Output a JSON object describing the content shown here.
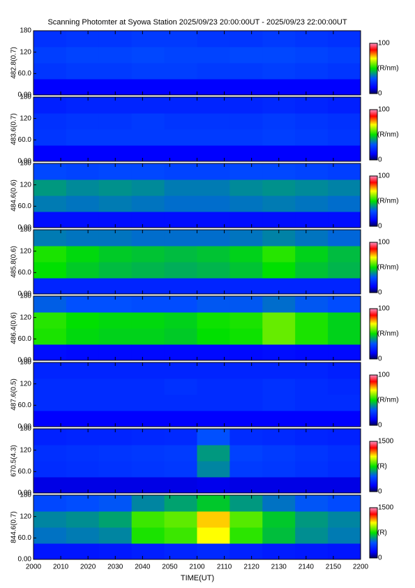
{
  "chart_data": {
    "type": "heatmap",
    "title": "Scanning Photomter at Syowa Station 2025/09/23 20:00:00UT - 2025/09/23 22:00:00UT",
    "x_label": "TIME(UT)",
    "xlim": [
      0,
      120
    ],
    "xticks": [
      {
        "value": 0,
        "label": "2000"
      },
      {
        "value": 10,
        "label": "2010"
      },
      {
        "value": 20,
        "label": "2020"
      },
      {
        "value": 30,
        "label": "2030"
      },
      {
        "value": 40,
        "label": "2040"
      },
      {
        "value": 50,
        "label": "2050"
      },
      {
        "value": 60,
        "label": "2100"
      },
      {
        "value": 70,
        "label": "2110"
      },
      {
        "value": 80,
        "label": "2120"
      },
      {
        "value": 90,
        "label": "2130"
      },
      {
        "value": 100,
        "label": "2140"
      },
      {
        "value": 110,
        "label": "2150"
      },
      {
        "value": 120,
        "label": "2200"
      }
    ],
    "time_bins": [
      0,
      12,
      24,
      36,
      48,
      60,
      72,
      84,
      96,
      108,
      120
    ],
    "elevation_bins": [
      0,
      45,
      90,
      135,
      180
    ],
    "ylim": [
      0,
      180
    ],
    "yticks": [
      {
        "value": 0,
        "label": "0.00"
      },
      {
        "value": 60,
        "label": "60.0"
      },
      120,
      180
    ],
    "panels": [
      {
        "y_label": "482.8(0.7)",
        "unit": "(R/nm)",
        "clim": [
          0,
          100
        ],
        "cticks": [
          0,
          100
        ],
        "values": [
          [
            12,
            12,
            12,
            12,
            12,
            12,
            12,
            12,
            12,
            12
          ],
          [
            24,
            25,
            25,
            26,
            26,
            25,
            25,
            26,
            25,
            24
          ],
          [
            26,
            27,
            27,
            28,
            27,
            27,
            28,
            28,
            27,
            26
          ],
          [
            23,
            24,
            24,
            25,
            25,
            24,
            24,
            25,
            24,
            23
          ]
        ]
      },
      {
        "y_label": "483.6(0.7)",
        "unit": "(R/nm)",
        "clim": [
          0,
          100
        ],
        "cticks": [
          0,
          100
        ],
        "values": [
          [
            12,
            12,
            12,
            12,
            12,
            12,
            12,
            12,
            12,
            12
          ],
          [
            24,
            25,
            25,
            25,
            25,
            25,
            25,
            26,
            25,
            24
          ],
          [
            23,
            24,
            24,
            25,
            24,
            24,
            24,
            25,
            24,
            23
          ],
          [
            19,
            20,
            20,
            20,
            20,
            20,
            20,
            21,
            20,
            19
          ]
        ]
      },
      {
        "y_label": "484.6(0.6)",
        "unit": "(R/nm)",
        "clim": [
          0,
          100
        ],
        "cticks": [
          0,
          100
        ],
        "values": [
          [
            15,
            15,
            15,
            15,
            15,
            15,
            15,
            15,
            15,
            15
          ],
          [
            36,
            35,
            36,
            35,
            34,
            34,
            35,
            36,
            35,
            34
          ],
          [
            40,
            38,
            39,
            38,
            36,
            36,
            38,
            39,
            38,
            37
          ],
          [
            28,
            27,
            28,
            28,
            27,
            27,
            28,
            28,
            27,
            26
          ]
        ]
      },
      {
        "y_label": "485.8(0.6)",
        "unit": "(R/nm)",
        "clim": [
          0,
          100
        ],
        "cticks": [
          0,
          100
        ],
        "values": [
          [
            20,
            20,
            20,
            20,
            20,
            20,
            20,
            20,
            20,
            20
          ],
          [
            50,
            47,
            45,
            44,
            43,
            44,
            46,
            50,
            46,
            44
          ],
          [
            52,
            49,
            47,
            46,
            45,
            46,
            48,
            53,
            48,
            45
          ],
          [
            36,
            35,
            35,
            34,
            34,
            34,
            35,
            37,
            35,
            33
          ]
        ]
      },
      {
        "y_label": "486.4(0.6)",
        "unit": "(R/nm)",
        "clim": [
          0,
          100
        ],
        "cticks": [
          0,
          100
        ],
        "values": [
          [
            15,
            14,
            14,
            14,
            14,
            14,
            14,
            15,
            14,
            14
          ],
          [
            52,
            49,
            48,
            48,
            47,
            50,
            51,
            58,
            52,
            48
          ],
          [
            53,
            50,
            49,
            49,
            48,
            51,
            52,
            58,
            52,
            48
          ],
          [
            32,
            30,
            30,
            29,
            29,
            31,
            31,
            34,
            31,
            29
          ]
        ]
      },
      {
        "y_label": "487.6(0.5)",
        "unit": "(R/nm)",
        "clim": [
          0,
          100
        ],
        "cticks": [
          0,
          100
        ],
        "values": [
          [
            12,
            12,
            12,
            12,
            12,
            12,
            12,
            12,
            12,
            12
          ],
          [
            22,
            22,
            22,
            22,
            22,
            22,
            22,
            23,
            22,
            22
          ],
          [
            22,
            22,
            22,
            22,
            23,
            22,
            22,
            23,
            22,
            21
          ],
          [
            20,
            20,
            20,
            20,
            20,
            20,
            20,
            20,
            20,
            19
          ]
        ]
      },
      {
        "y_label": "670.5(4.3)",
        "unit": "(R)",
        "clim": [
          0,
          1500
        ],
        "cticks": [
          0,
          1500
        ],
        "values": [
          [
            150,
            150,
            150,
            150,
            150,
            160,
            150,
            150,
            150,
            150
          ],
          [
            330,
            340,
            350,
            360,
            370,
            560,
            380,
            370,
            350,
            330
          ],
          [
            340,
            350,
            360,
            370,
            380,
            600,
            400,
            380,
            360,
            340
          ],
          [
            290,
            300,
            300,
            310,
            320,
            450,
            330,
            320,
            300,
            290
          ]
        ]
      },
      {
        "y_label": "844.6(0.7)",
        "unit": "(R)",
        "clim": [
          0,
          1500
        ],
        "cticks": [
          0,
          1500
        ],
        "values": [
          [
            250,
            250,
            260,
            280,
            300,
            320,
            290,
            270,
            260,
            250
          ],
          [
            520,
            540,
            560,
            780,
            820,
            1050,
            800,
            680,
            580,
            540
          ],
          [
            560,
            580,
            620,
            820,
            860,
            1100,
            850,
            700,
            600,
            560
          ],
          [
            420,
            440,
            460,
            560,
            620,
            700,
            600,
            520,
            460,
            430
          ]
        ]
      }
    ]
  }
}
